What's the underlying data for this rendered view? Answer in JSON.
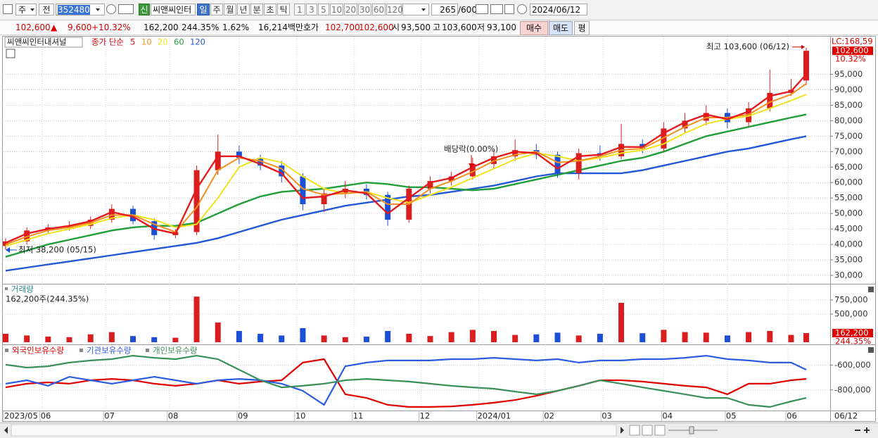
{
  "toolbar": {
    "market": "주",
    "prev": "전",
    "code": "352480",
    "new_badge": "신",
    "name": "씨앤씨인터",
    "periods": [
      "일",
      "주",
      "월",
      "년",
      "분",
      "초",
      "틱"
    ],
    "intervals": [
      "1",
      "3",
      "5",
      "10",
      "20",
      "30",
      "60",
      "120"
    ],
    "count": "265",
    "max_count": "/600",
    "date": "2024/06/12"
  },
  "info_bar": {
    "price": "102,600",
    "arrow": "▲",
    "change": "9,600",
    "change_pct": "+10.32%",
    "volume": "162,200",
    "volume_pct": "244.35%",
    "turnover": "1.62%",
    "amount": "16,214백만",
    "quote_label": "호가",
    "ask": "102,700",
    "bid": "102,600",
    "open_label": "시",
    "open": "93,500",
    "high_label": "고",
    "high": "103,600",
    "low_label": "저",
    "low": "93,100",
    "buy": "매수",
    "sell": "매도",
    "avg": "평"
  },
  "chart_data": [
    {
      "type": "candlestick",
      "title": "씨앤씨인터내셔널",
      "subtitle": "종가 단순",
      "x": [
        0,
        7,
        14,
        21,
        28,
        35,
        42,
        49,
        56,
        63,
        70,
        77,
        84,
        91,
        98,
        105,
        112,
        119,
        126,
        133,
        140,
        147,
        154,
        161,
        168,
        175,
        182,
        189,
        196,
        203,
        210,
        217,
        224,
        231,
        238,
        245,
        252,
        259,
        264
      ],
      "open": [
        39500,
        41000,
        44500,
        45500,
        46000,
        48000,
        51500,
        47500,
        43000,
        44000,
        64000,
        70000,
        68000,
        65500,
        62000,
        53000,
        56500,
        58000,
        56000,
        48000,
        58000,
        60500,
        62000,
        66000,
        68500,
        70500,
        69000,
        63000,
        69500,
        68500,
        72500,
        71000,
        77500,
        80000,
        82500,
        79500,
        84000,
        89000,
        93000
      ],
      "high": [
        42000,
        45500,
        46500,
        47500,
        49000,
        53000,
        52500,
        48500,
        45000,
        65500,
        75500,
        72000,
        69000,
        67000,
        63000,
        58000,
        60500,
        59500,
        57000,
        59000,
        62000,
        63500,
        68000,
        70500,
        74000,
        72500,
        70000,
        71000,
        72000,
        79000,
        74000,
        79500,
        82500,
        85000,
        84000,
        86000,
        96500,
        93500,
        103600
      ],
      "low": [
        38200,
        40000,
        43500,
        44500,
        45000,
        47000,
        46500,
        41500,
        42000,
        43000,
        62500,
        66000,
        64000,
        60000,
        51000,
        50500,
        55000,
        54500,
        46000,
        47000,
        56500,
        59000,
        61000,
        64500,
        67000,
        67500,
        61500,
        61000,
        67000,
        67500,
        69500,
        70000,
        76000,
        78500,
        77500,
        78000,
        83000,
        88000,
        91500
      ],
      "close": [
        41000,
        44500,
        45500,
        46000,
        48000,
        51500,
        47500,
        43000,
        44000,
        64000,
        70000,
        68000,
        65500,
        62000,
        53000,
        56500,
        58000,
        56000,
        48000,
        58000,
        60500,
        62000,
        66000,
        68500,
        70500,
        69000,
        63000,
        69500,
        68500,
        72500,
        71000,
        77500,
        80000,
        82500,
        79500,
        84000,
        89000,
        90000,
        102600
      ],
      "up_color": "#d81e1e",
      "down_color": "#1a4fd6",
      "series": [
        {
          "name": "5",
          "color": "#e41a1c",
          "values": [
            40500,
            43500,
            45000,
            46000,
            47500,
            50500,
            49000,
            45000,
            43500,
            58000,
            68500,
            68500,
            66000,
            63000,
            55000,
            55500,
            57500,
            56500,
            50000,
            55000,
            60000,
            61500,
            65000,
            68000,
            70000,
            69500,
            64500,
            68500,
            69000,
            71500,
            71500,
            76000,
            79500,
            82000,
            80500,
            83000,
            88000,
            89500,
            95000
          ]
        },
        {
          "name": "10",
          "color": "#f39020",
          "values": [
            40000,
            42500,
            44500,
            45500,
            47000,
            49500,
            49500,
            46500,
            44000,
            52000,
            64000,
            68000,
            67000,
            64500,
            58000,
            56000,
            56500,
            57000,
            53000,
            53000,
            58000,
            60500,
            63500,
            67000,
            69000,
            70000,
            66500,
            67000,
            68500,
            70500,
            71000,
            74500,
            78000,
            81000,
            81000,
            82000,
            86000,
            88500,
            92000
          ]
        },
        {
          "name": "20",
          "color": "#f2e21a",
          "values": [
            39500,
            41500,
            43500,
            45000,
            46500,
            48500,
            49500,
            48000,
            45500,
            46500,
            55000,
            65000,
            68000,
            66500,
            62000,
            58000,
            56500,
            57000,
            55000,
            53500,
            56000,
            58500,
            61500,
            64500,
            67500,
            69500,
            68500,
            67000,
            68000,
            69500,
            70500,
            72500,
            76000,
            79000,
            80500,
            81500,
            84000,
            86500,
            88500
          ]
        },
        {
          "name": "60",
          "color": "#1f9e3a",
          "values": [
            36000,
            38000,
            40000,
            41500,
            43000,
            44500,
            45500,
            46000,
            46000,
            47000,
            50000,
            53000,
            55500,
            57000,
            57500,
            58000,
            59000,
            60000,
            59500,
            58500,
            58500,
            58000,
            57500,
            58000,
            59500,
            61000,
            62500,
            64000,
            65500,
            67000,
            68000,
            70000,
            72500,
            75000,
            76500,
            78000,
            79500,
            81000,
            82000
          ]
        },
        {
          "name": "120",
          "color": "#2457d6",
          "values": [
            31500,
            32500,
            33500,
            34500,
            35500,
            36500,
            37500,
            38500,
            39500,
            40500,
            42000,
            44000,
            46000,
            48000,
            49500,
            51000,
            52500,
            53500,
            54500,
            55500,
            56000,
            57000,
            58000,
            59000,
            60500,
            62000,
            63000,
            63000,
            63000,
            63000,
            64000,
            65500,
            67000,
            68500,
            70000,
            71000,
            72500,
            74000,
            75000
          ]
        }
      ],
      "xlim": [
        0,
        264
      ],
      "ylim": [
        27500,
        106500
      ],
      "yticks": [
        {
          "value": 30000,
          "label": "30,000"
        },
        {
          "value": 35000,
          "label": "35,000"
        },
        {
          "value": 40000,
          "label": "40,000"
        },
        {
          "value": 45000,
          "label": "45,000"
        },
        {
          "value": 50000,
          "label": "50,000"
        },
        {
          "value": 55000,
          "label": "55,000"
        },
        {
          "value": 60000,
          "label": "60,000"
        },
        {
          "value": 65000,
          "label": "65,000"
        },
        {
          "value": 70000,
          "label": "70,000"
        },
        {
          "value": 75000,
          "label": "75,000"
        },
        {
          "value": 80000,
          "label": "80,000"
        },
        {
          "value": 85000,
          "label": "85,000"
        },
        {
          "value": 90000,
          "label": "90,000"
        },
        {
          "value": 95000,
          "label": "95,000"
        }
      ],
      "grid": true,
      "annotations": [
        {
          "text": "최고 103,600 (06/12)"
        },
        {
          "text": "최저 38,200 (05/15)"
        },
        {
          "text": "배당락(0.00%)"
        }
      ],
      "top_label": "LC:168,59",
      "last_label": "102,600",
      "change_label": "10.32%"
    },
    {
      "type": "bar",
      "title": "거래량",
      "subtitle": "162,200주(244.35%)",
      "x": [
        0,
        7,
        14,
        21,
        28,
        35,
        42,
        49,
        56,
        63,
        70,
        77,
        84,
        91,
        98,
        105,
        112,
        119,
        126,
        133,
        140,
        147,
        154,
        161,
        168,
        175,
        182,
        189,
        196,
        203,
        210,
        217,
        224,
        231,
        238,
        245,
        252,
        259,
        264
      ],
      "values": [
        150000,
        120000,
        100000,
        90000,
        140000,
        180000,
        110000,
        90000,
        80000,
        810000,
        350000,
        200000,
        150000,
        120000,
        250000,
        120000,
        90000,
        100000,
        200000,
        150000,
        110000,
        180000,
        220000,
        200000,
        130000,
        140000,
        170000,
        120000,
        150000,
        700000,
        160000,
        220000,
        180000,
        170000,
        120000,
        180000,
        200000,
        130000,
        162200
      ],
      "up_color": "#d81e1e",
      "down_color": "#1a4fd6",
      "xlim": [
        0,
        264
      ],
      "ylim": [
        0,
        1000000
      ],
      "yticks": [
        {
          "value": 500000,
          "label": "500,000"
        },
        {
          "value": 750000,
          "label": "750,000"
        }
      ],
      "grid": true,
      "last_label": "162,200",
      "last_pct_label": "244.35%"
    },
    {
      "type": "line",
      "x": [
        0,
        7,
        14,
        21,
        28,
        35,
        42,
        49,
        56,
        63,
        70,
        77,
        84,
        91,
        98,
        105,
        112,
        119,
        126,
        133,
        140,
        147,
        154,
        161,
        168,
        175,
        182,
        189,
        196,
        203,
        210,
        217,
        224,
        231,
        238,
        245,
        252,
        259,
        264
      ],
      "series": [
        {
          "name": "외국인보유수량",
          "color": "#e00000",
          "values": [
            -779000,
            -750000,
            -739000,
            -750000,
            -722000,
            -711000,
            -722000,
            -750000,
            -767000,
            -750000,
            -722000,
            -750000,
            -733000,
            -722000,
            -580000,
            -552000,
            -835000,
            -864000,
            -920000,
            -937000,
            -937000,
            -932000,
            -920000,
            -903000,
            -881000,
            -847000,
            -807000,
            -767000,
            -722000,
            -722000,
            -733000,
            -750000,
            -767000,
            -779000,
            -835000,
            -750000,
            -750000,
            -722000,
            -711000
          ]
        },
        {
          "name": "기관보유수량",
          "color": "#2a5be0",
          "values": [
            -750000,
            -722000,
            -767000,
            -694000,
            -722000,
            -750000,
            -722000,
            -694000,
            -722000,
            -750000,
            -722000,
            -711000,
            -722000,
            -750000,
            -807000,
            -920000,
            -609000,
            -580000,
            -563000,
            -563000,
            -563000,
            -552000,
            -552000,
            -541000,
            -552000,
            -563000,
            -552000,
            -580000,
            -563000,
            -563000,
            -552000,
            -552000,
            -541000,
            -524000,
            -552000,
            -563000,
            -580000,
            -580000,
            -637000
          ]
        },
        {
          "name": "개인보유수량",
          "color": "#3a8f5a",
          "values": [
            -597000,
            -620000,
            -609000,
            -580000,
            -563000,
            -552000,
            -524000,
            -541000,
            -552000,
            -524000,
            -552000,
            -637000,
            -722000,
            -779000,
            -767000,
            -750000,
            -722000,
            -711000,
            -722000,
            -733000,
            -750000,
            -767000,
            -779000,
            -790000,
            -813000,
            -835000,
            -807000,
            -767000,
            -722000,
            -750000,
            -779000,
            -807000,
            -835000,
            -864000,
            -864000,
            -920000,
            -937000,
            -892000,
            -864000
          ]
        }
      ],
      "xlim": [
        0,
        264
      ],
      "ylim": [
        -960000,
        -450000
      ],
      "yticks": [
        {
          "value": -800000,
          "label": "-800,000"
        },
        {
          "value": -600000,
          "label": "-600,000"
        }
      ],
      "xticks": [
        {
          "value": 0,
          "label": "2023/05"
        },
        {
          "value": 12,
          "label": "06"
        },
        {
          "value": 33,
          "label": "07"
        },
        {
          "value": 54,
          "label": "08"
        },
        {
          "value": 77,
          "label": "09"
        },
        {
          "value": 96,
          "label": "10"
        },
        {
          "value": 115,
          "label": "11"
        },
        {
          "value": 137,
          "label": "12"
        },
        {
          "value": 156,
          "label": "2024/01"
        },
        {
          "value": 178,
          "label": "02"
        },
        {
          "value": 197,
          "label": "03"
        },
        {
          "value": 217,
          "label": "04"
        },
        {
          "value": 238,
          "label": "05"
        },
        {
          "value": 258,
          "label": "06"
        }
      ],
      "grid": true,
      "x_end_label": "06/12"
    }
  ]
}
